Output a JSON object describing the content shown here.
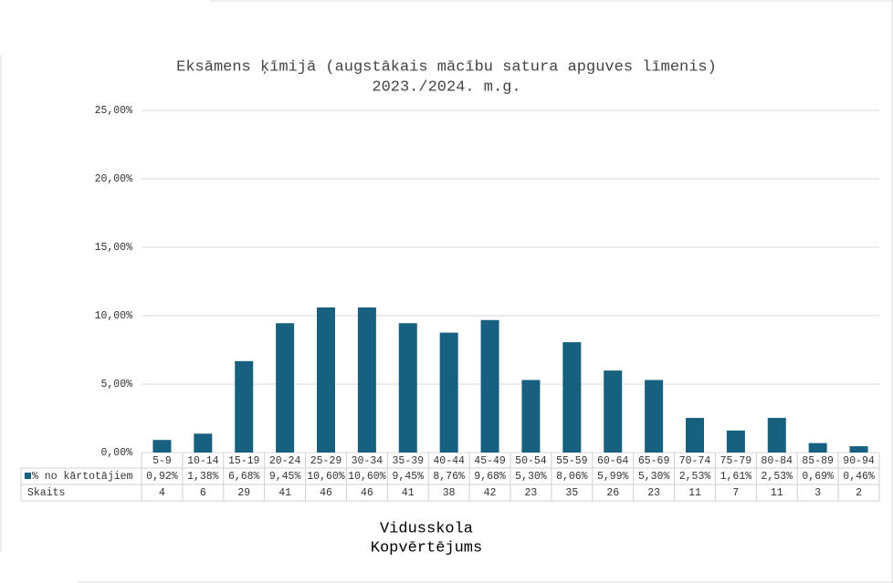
{
  "chart_data": {
    "type": "bar",
    "title": [
      "Eksāmens ķīmijā (augstākais mācību satura apguves līmenis)",
      "2023./2024. m.g."
    ],
    "x_label": [
      "Vidusskola",
      "Kopvērtējums"
    ],
    "categories": [
      "5-9",
      "10-14",
      "15-19",
      "20-24",
      "25-29",
      "30-34",
      "35-39",
      "40-44",
      "45-49",
      "50-54",
      "55-59",
      "60-64",
      "65-69",
      "70-74",
      "75-79",
      "80-84",
      "85-89",
      "90-94"
    ],
    "series": [
      {
        "name": "% no kārtotājiem",
        "color": "#17607f",
        "values": [
          0.92,
          1.38,
          6.68,
          9.45,
          10.6,
          10.6,
          9.45,
          8.76,
          9.68,
          5.3,
          8.06,
          5.99,
          5.3,
          2.53,
          1.61,
          2.53,
          0.69,
          0.46
        ],
        "value_labels": [
          "0,92%",
          "1,38%",
          "6,68%",
          "9,45%",
          "10,60%",
          "10,60%",
          "9,45%",
          "8,76%",
          "9,68%",
          "5,30%",
          "8,06%",
          "5,99%",
          "5,30%",
          "2,53%",
          "1,61%",
          "2,53%",
          "0,69%",
          "0,46%"
        ]
      }
    ],
    "counts": {
      "name": "Skaits",
      "values": [
        4,
        6,
        29,
        41,
        46,
        46,
        41,
        38,
        42,
        23,
        35,
        26,
        23,
        11,
        7,
        11,
        3,
        2
      ]
    },
    "ylim": [
      0,
      25
    ],
    "yticks": [
      {
        "value": 0,
        "label": "0,00%"
      },
      {
        "value": 5,
        "label": "5,00%"
      },
      {
        "value": 10,
        "label": "10,00%"
      },
      {
        "value": 15,
        "label": "15,00%"
      },
      {
        "value": 20,
        "label": "20,00%"
      },
      {
        "value": 25,
        "label": "25,00%"
      }
    ],
    "grid": true
  }
}
